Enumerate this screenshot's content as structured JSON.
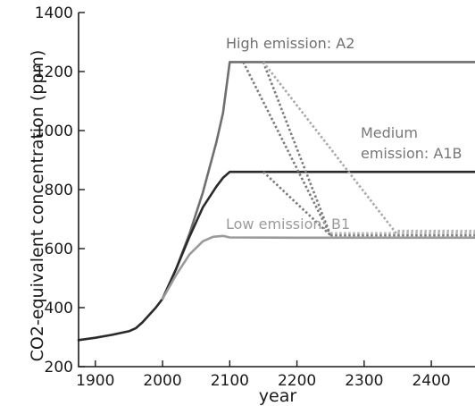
{
  "chart_data": {
    "type": "line",
    "xlabel": "year",
    "ylabel": "CO2-equivalent concentration (ppm)",
    "xlim": [
      1875,
      2465
    ],
    "ylim": [
      200,
      1400
    ],
    "xticks": [
      1900,
      2000,
      2100,
      2200,
      2300,
      2400
    ],
    "yticks": [
      200,
      400,
      600,
      800,
      1000,
      1200,
      1400
    ],
    "grid": false,
    "annotations": [
      {
        "text": "High emission: A2",
        "color": "#6f6f6f"
      },
      {
        "text": "Medium",
        "color": "#777777"
      },
      {
        "text": "emission: A1B",
        "color": "#777777"
      },
      {
        "text": "Low emission: B1",
        "color": "#9a9a9a"
      }
    ],
    "series": [
      {
        "color": "#2a2a2a",
        "style": "solid",
        "x": [
          1875,
          1900,
          1925,
          1950,
          1960,
          1970,
          1980,
          1990,
          2000
        ],
        "y": [
          290,
          298,
          308,
          320,
          330,
          350,
          375,
          400,
          430
        ]
      },
      {
        "color": "#6f6f6f",
        "style": "solid",
        "x": [
          2000,
          2020,
          2040,
          2060,
          2080,
          2090,
          2100,
          2150,
          2200,
          2300,
          2400,
          2465
        ],
        "y": [
          430,
          530,
          650,
          790,
          960,
          1060,
          1232,
          1232,
          1232,
          1232,
          1232,
          1232
        ]
      },
      {
        "color": "#2a2a2a",
        "style": "solid",
        "x": [
          2000,
          2020,
          2040,
          2060,
          2080,
          2090,
          2100,
          2200,
          2300,
          2400,
          2465
        ],
        "y": [
          430,
          530,
          640,
          740,
          810,
          840,
          860,
          860,
          860,
          860,
          860
        ]
      },
      {
        "color": "#9a9a9a",
        "style": "solid",
        "x": [
          2000,
          2020,
          2040,
          2060,
          2075,
          2090,
          2100,
          2200,
          2300,
          2400,
          2465
        ],
        "y": [
          430,
          510,
          580,
          625,
          640,
          643,
          638,
          637,
          637,
          637,
          637
        ]
      },
      {
        "color": "#7a7a7a",
        "style": "dotted",
        "x": [
          2120,
          2250
        ],
        "y": [
          1232,
          645
        ]
      },
      {
        "color": "#7a7a7a",
        "style": "dotted",
        "x": [
          2150,
          2250
        ],
        "y": [
          1232,
          645
        ]
      },
      {
        "color": "#a8a8a8",
        "style": "dotted",
        "x": [
          2150,
          2350
        ],
        "y": [
          1232,
          645
        ]
      },
      {
        "color": "#7a7a7a",
        "style": "dotted",
        "x": [
          2150,
          2250
        ],
        "y": [
          860,
          645
        ]
      },
      {
        "color": "#7a7a7a",
        "style": "dotted",
        "x": [
          2250,
          2465
        ],
        "y": [
          645,
          645
        ]
      },
      {
        "color": "#b5b5b5",
        "style": "dotted",
        "x": [
          2250,
          2465
        ],
        "y": [
          652,
          652
        ]
      },
      {
        "color": "#b5b5b5",
        "style": "dotted",
        "x": [
          2350,
          2465
        ],
        "y": [
          660,
          660
        ]
      }
    ]
  }
}
